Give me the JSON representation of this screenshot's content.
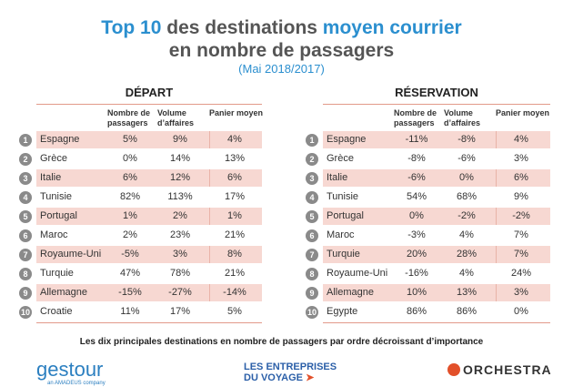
{
  "title": {
    "part1": "Top 10",
    "part2": " des destinations ",
    "part3": "moyen courrier",
    "line2": "en nombre de passagers",
    "subtitle": "(Mai 2018/2017)"
  },
  "columns": [
    "Nombre de passagers",
    "Volume d’affaires",
    "Panier moyen"
  ],
  "depart": {
    "heading": "DÉPART",
    "rows": [
      {
        "n": "1",
        "name": "Espagne",
        "v": [
          "5%",
          "9%",
          "4%"
        ]
      },
      {
        "n": "2",
        "name": "Grèce",
        "v": [
          "0%",
          "14%",
          "13%"
        ]
      },
      {
        "n": "3",
        "name": "Italie",
        "v": [
          "6%",
          "12%",
          "6%"
        ]
      },
      {
        "n": "4",
        "name": "Tunisie",
        "v": [
          "82%",
          "113%",
          "17%"
        ]
      },
      {
        "n": "5",
        "name": "Portugal",
        "v": [
          "1%",
          "2%",
          "1%"
        ]
      },
      {
        "n": "6",
        "name": "Maroc",
        "v": [
          "2%",
          "23%",
          "21%"
        ]
      },
      {
        "n": "7",
        "name": "Royaume-Uni",
        "v": [
          "-5%",
          "3%",
          "8%"
        ]
      },
      {
        "n": "8",
        "name": "Turquie",
        "v": [
          "47%",
          "78%",
          "21%"
        ]
      },
      {
        "n": "9",
        "name": "Allemagne",
        "v": [
          "-15%",
          "-27%",
          "-14%"
        ]
      },
      {
        "n": "10",
        "name": "Croatie",
        "v": [
          "11%",
          "17%",
          "5%"
        ]
      }
    ]
  },
  "reservation": {
    "heading": "RÉSERVATION",
    "rows": [
      {
        "n": "1",
        "name": "Espagne",
        "v": [
          "-11%",
          "-8%",
          "4%"
        ]
      },
      {
        "n": "2",
        "name": "Grèce",
        "v": [
          "-8%",
          "-6%",
          "3%"
        ]
      },
      {
        "n": "3",
        "name": "Italie",
        "v": [
          "-6%",
          "0%",
          "6%"
        ]
      },
      {
        "n": "4",
        "name": "Tunisie",
        "v": [
          "54%",
          "68%",
          "9%"
        ]
      },
      {
        "n": "5",
        "name": "Portugal",
        "v": [
          "0%",
          "-2%",
          "-2%"
        ]
      },
      {
        "n": "6",
        "name": "Maroc",
        "v": [
          "-3%",
          "4%",
          "7%"
        ]
      },
      {
        "n": "7",
        "name": "Turquie",
        "v": [
          "20%",
          "28%",
          "7%"
        ]
      },
      {
        "n": "8",
        "name": "Royaume-Uni",
        "v": [
          "-16%",
          "4%",
          "24%"
        ]
      },
      {
        "n": "9",
        "name": "Allemagne",
        "v": [
          "10%",
          "13%",
          "3%"
        ]
      },
      {
        "n": "10",
        "name": "Egypte",
        "v": [
          "86%",
          "86%",
          "0%"
        ]
      }
    ]
  },
  "footnote": "Les dix principales destinations en nombre de passagers par ordre décroissant d’importance",
  "logos": {
    "gestour": "gestour",
    "gestour_sub": "an AMADEUS company",
    "edv1": "LES ENTREPRISES",
    "edv2": "DU VOYAGE",
    "orchestra": "ORCHESTRA"
  },
  "colors": {
    "accent": "#2b8fcf",
    "row_shade": "#f7d8d2"
  }
}
